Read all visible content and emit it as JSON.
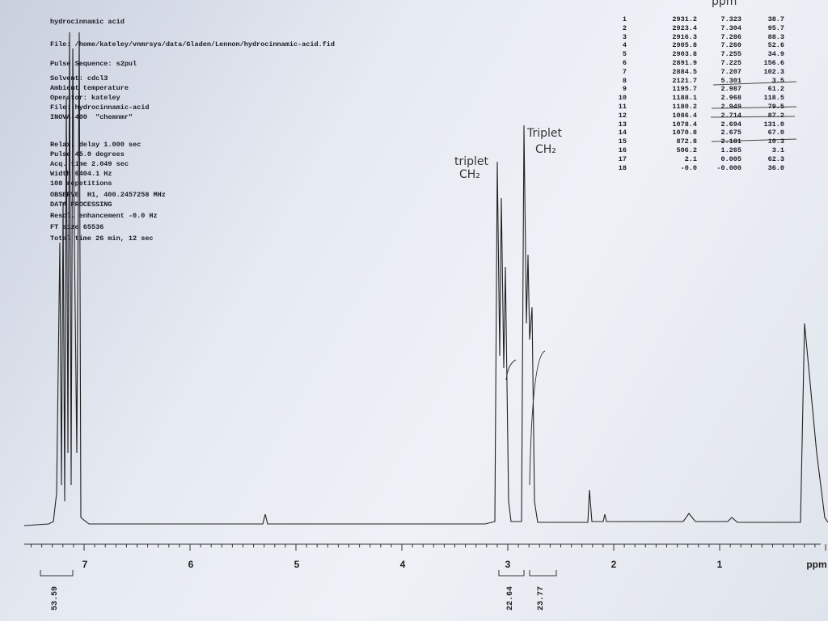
{
  "header": {
    "lines": [
      "hydrocinnamic acid",
      "File: /home/kateley/vnmrsys/data/Gladen/Lennon/hydrocinnamic-acid.fid",
      "Pulse Sequence: s2pul",
      "Solvent: cdcl3",
      "Ambient temperature",
      "Operator: kateley",
      "File: hydrocinnamic-acid",
      "INOVA-400  \"chemnmr\"",
      "Relax. delay 1.000 sec",
      "Pulse 45.0 degrees",
      "Acq. time 2.049 sec",
      "Width 6404.1 Hz",
      "108 repetitions",
      "OBSERVE  H1, 400.2457258 MHz",
      "DATA PROCESSING",
      "Resol. enhancement -0.0 Hz",
      "FT size 65536",
      "Total time 26 min, 12 sec"
    ]
  },
  "peak_table": {
    "handwritten_header": "ppm",
    "rows": [
      [
        "1",
        "2931.2",
        "7.323",
        "38.7"
      ],
      [
        "2",
        "2923.4",
        "7.304",
        "95.7"
      ],
      [
        "3",
        "2916.3",
        "7.286",
        "88.3"
      ],
      [
        "4",
        "2905.8",
        "7.260",
        "52.6"
      ],
      [
        "5",
        "2903.8",
        "7.255",
        "34.9"
      ],
      [
        "6",
        "2891.9",
        "7.225",
        "156.6"
      ],
      [
        "7",
        "2884.5",
        "7.207",
        "102.3"
      ],
      [
        "8",
        "2121.7",
        "5.301",
        "3.5"
      ],
      [
        "9",
        "1195.7",
        "2.987",
        "61.2"
      ],
      [
        "10",
        "1188.1",
        "2.968",
        "118.5"
      ],
      [
        "11",
        "1180.2",
        "2.949",
        "79.5"
      ],
      [
        "12",
        "1086.4",
        "2.714",
        "87.2"
      ],
      [
        "13",
        "1078.4",
        "2.694",
        "131.0"
      ],
      [
        "14",
        "1070.8",
        "2.675",
        "67.0"
      ],
      [
        "15",
        "872.8",
        "2.181",
        "10.3"
      ],
      [
        "16",
        "506.2",
        "1.265",
        "3.1"
      ],
      [
        "17",
        "2.1",
        "0.005",
        "62.3"
      ],
      [
        "18",
        "-0.0",
        "-0.000",
        "36.0"
      ]
    ]
  },
  "annotations": [
    {
      "line1": "triplet",
      "line2": "CH₂"
    },
    {
      "line1": "Triplet",
      "line2": "CH₂"
    }
  ],
  "axis": {
    "labels": [
      "7",
      "6",
      "5",
      "4",
      "3",
      "2",
      "1",
      "ppm"
    ]
  },
  "integrals": [
    "53.59",
    "22.64",
    "23.77"
  ]
}
